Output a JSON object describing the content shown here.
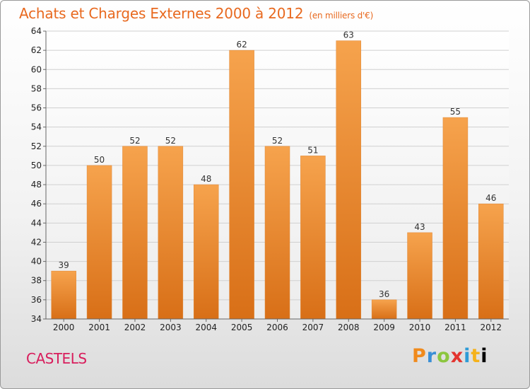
{
  "header": {
    "title": "Achats et Charges Externes 2000 à 2012",
    "subtitle": "(en milliers d'€)"
  },
  "footer": {
    "commune": "CASTELS",
    "brand": "Proxiti",
    "brand_letters": [
      "P",
      "r",
      "o",
      "x",
      "i",
      "t",
      "i"
    ]
  },
  "colors": {
    "title": "#e8691f",
    "commune": "#d81d5c",
    "bar_light": "#f6a34d",
    "bar_dark": "#d86f17",
    "grid": "#d0d0d0"
  },
  "chart_data": {
    "type": "bar",
    "title": "Achats et Charges Externes 2000 à 2012",
    "subtitle": "(en milliers d'€)",
    "categories": [
      "2000",
      "2001",
      "2002",
      "2003",
      "2004",
      "2005",
      "2006",
      "2007",
      "2008",
      "2009",
      "2010",
      "2011",
      "2012"
    ],
    "values": [
      39,
      50,
      52,
      52,
      48,
      62,
      52,
      51,
      63,
      36,
      43,
      55,
      46
    ],
    "ylim": [
      34,
      64
    ],
    "yticks": [
      34,
      36,
      38,
      40,
      42,
      44,
      46,
      48,
      50,
      52,
      54,
      56,
      58,
      60,
      62,
      64
    ],
    "xlabel": "",
    "ylabel": "",
    "grid": true,
    "legend": "none"
  }
}
